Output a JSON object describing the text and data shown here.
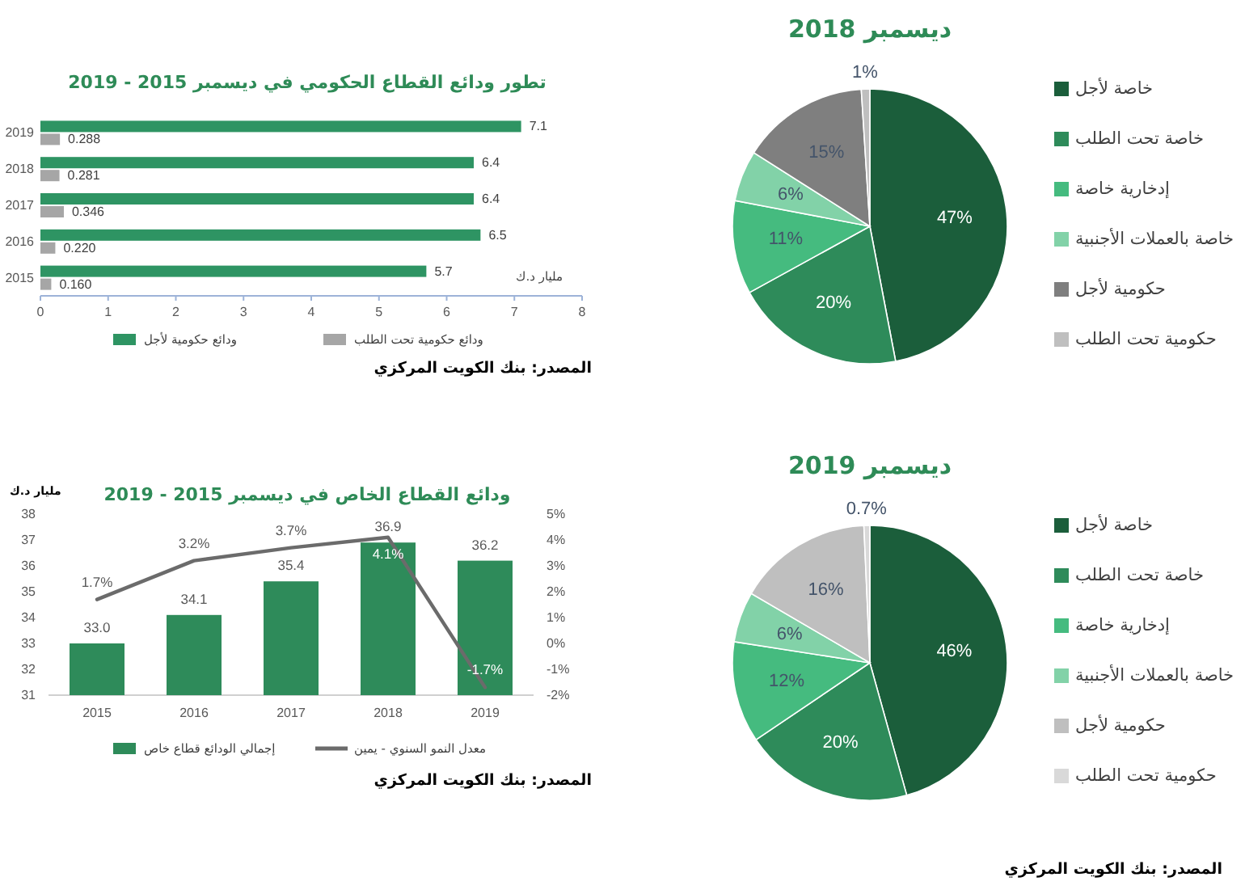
{
  "chart_data": [
    {
      "type": "bar",
      "orientation": "horizontal",
      "title": "تطور ودائع القطاع الحكومي في ديسمبر 2015 - 2019",
      "xlabel": "مليار د.ك",
      "categories": [
        "2019",
        "2018",
        "2017",
        "2016",
        "2015"
      ],
      "series": [
        {
          "name": "ودائع حكومية لأجل",
          "color": "#2e9463",
          "values": [
            7.1,
            6.4,
            6.4,
            6.5,
            5.7
          ],
          "value_labels": [
            "7.1",
            "6.4",
            "6.4",
            "6.5",
            "5.7"
          ]
        },
        {
          "name": "ودائع حكومية تحت الطلب",
          "color": "#a6a6a6",
          "values": [
            0.288,
            0.281,
            0.346,
            0.22,
            0.16
          ],
          "value_labels": [
            "0.288",
            "0.281",
            "0.346",
            "0.220",
            "0.160"
          ]
        }
      ],
      "xlim": [
        0,
        8
      ],
      "xticks": [
        0,
        1,
        2,
        3,
        4,
        5,
        6,
        7,
        8
      ],
      "legend": "bottom",
      "annotations": [
        "المصدر: بنك الكويت المركزي"
      ]
    },
    {
      "type": "pie",
      "title": "ديسمبر 2018",
      "categories": [
        "خاصة لأجل",
        "خاصة تحت الطلب",
        "إدخارية خاصة",
        "خاصة  بالعملات الأجنبية",
        "حكومية لأجل",
        "حكومية تحت الطلب"
      ],
      "values": [
        47,
        20,
        11,
        6,
        15,
        1
      ],
      "colors": [
        "#1b5e3b",
        "#2e8b5a",
        "#45bb7f",
        "#82d2a8",
        "#7f7f7f",
        "#bfbfbf"
      ],
      "value_labels": [
        "47%",
        "20%",
        "11%",
        "6%",
        "15%",
        "1%"
      ],
      "legend": "right"
    },
    {
      "type": "bar",
      "title": "ودائع القطاع الخاص في ديسمبر 2015 - 2019",
      "ylabel": "مليار د.ك",
      "categories": [
        "2015",
        "2016",
        "2017",
        "2018",
        "2019"
      ],
      "series": [
        {
          "name": "إجمالي الودائع قطاع خاص",
          "color": "#2e8b5a",
          "values": [
            33.0,
            34.1,
            35.4,
            36.9,
            36.2
          ],
          "value_labels": [
            "33.0",
            "34.1",
            "35.4",
            "36.9",
            "36.2"
          ]
        },
        {
          "name": "معدل النمو السنوي - يمين",
          "type": "line",
          "axis": "y2",
          "color": "#6b6b6b",
          "values": [
            1.7,
            3.2,
            3.7,
            4.1,
            -1.7
          ],
          "value_labels": [
            "1.7%",
            "3.2%",
            "3.7%",
            "4.1%",
            "-1.7%"
          ]
        }
      ],
      "ylim": [
        31,
        38
      ],
      "yticks": [
        31,
        32,
        33,
        34,
        35,
        36,
        37,
        38
      ],
      "y2lim": [
        -2,
        5
      ],
      "y2ticks": [
        {
          "value": -2,
          "label": "-2%"
        },
        {
          "value": -1,
          "label": "-1%"
        },
        {
          "value": 0,
          "label": "0%"
        },
        {
          "value": 1,
          "label": "1%"
        },
        {
          "value": 2,
          "label": "2%"
        },
        {
          "value": 3,
          "label": "3%"
        },
        {
          "value": 4,
          "label": "4%"
        },
        {
          "value": 5,
          "label": "5%"
        }
      ],
      "legend": "bottom",
      "annotations": [
        "المصدر: بنك الكويت المركزي"
      ]
    },
    {
      "type": "pie",
      "title": "ديسمبر 2019",
      "categories": [
        "خاصة لأجل",
        "خاصة تحت الطلب",
        "إدخارية خاصة",
        "خاصة  بالعملات الأجنبية",
        "حكومية لأجل",
        "حكومية تحت الطلب"
      ],
      "values": [
        46,
        20,
        12,
        6,
        16,
        0.7
      ],
      "colors": [
        "#1b5e3b",
        "#2e8b5a",
        "#45bb7f",
        "#82d2a8",
        "#bfbfbf",
        "#d9d9d9"
      ],
      "value_labels": [
        "46%",
        "20%",
        "12%",
        "6%",
        "16%",
        "0.7%"
      ],
      "legend": "right",
      "annotations": [
        "المصدر: بنك الكويت المركزي"
      ]
    }
  ]
}
